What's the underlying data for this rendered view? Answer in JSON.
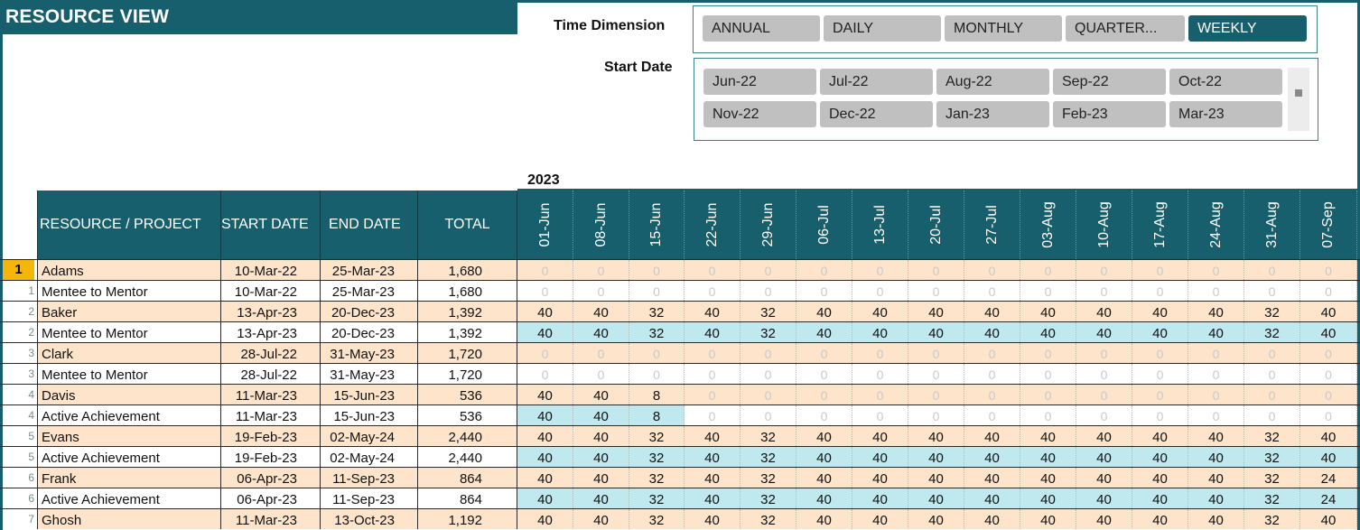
{
  "title": "RESOURCE VIEW",
  "time_dimension": {
    "label": "Time Dimension",
    "options": [
      "ANNUAL",
      "DAILY",
      "MONTHLY",
      "QUARTER...",
      "WEEKLY"
    ],
    "selected": "WEEKLY"
  },
  "start_date": {
    "label": "Start Date",
    "options": [
      "Jun-22",
      "Jul-22",
      "Aug-22",
      "Sep-22",
      "Oct-22",
      "Nov-22",
      "Dec-22",
      "Jan-23",
      "Feb-23",
      "Mar-23"
    ]
  },
  "year": "2023",
  "columns": {
    "resource": "RESOURCE / PROJECT",
    "start": "START DATE",
    "end": "END DATE",
    "total": "TOTAL"
  },
  "weeks": [
    "01-Jun",
    "08-Jun",
    "15-Jun",
    "22-Jun",
    "29-Jun",
    "06-Jul",
    "13-Jul",
    "20-Jul",
    "27-Jul",
    "03-Aug",
    "10-Aug",
    "17-Aug",
    "24-Aug",
    "31-Aug",
    "07-Sep"
  ],
  "rows": [
    {
      "num": "1",
      "type": "res",
      "name": "Adams",
      "start": "10-Mar-22",
      "end": "25-Mar-23",
      "total": "1,680",
      "values": [
        0,
        0,
        0,
        0,
        0,
        0,
        0,
        0,
        0,
        0,
        0,
        0,
        0,
        0,
        0
      ]
    },
    {
      "num": "1",
      "type": "proj",
      "name": "Mentee to Mentor",
      "start": "10-Mar-22",
      "end": "25-Mar-23",
      "total": "1,680",
      "values": [
        0,
        0,
        0,
        0,
        0,
        0,
        0,
        0,
        0,
        0,
        0,
        0,
        0,
        0,
        0
      ]
    },
    {
      "num": "2",
      "type": "res",
      "name": "Baker",
      "start": "13-Apr-23",
      "end": "20-Dec-23",
      "total": "1,392",
      "values": [
        40,
        40,
        32,
        40,
        32,
        40,
        40,
        40,
        40,
        40,
        40,
        40,
        40,
        32,
        40
      ]
    },
    {
      "num": "2",
      "type": "proj",
      "name": "Mentee to Mentor",
      "start": "13-Apr-23",
      "end": "20-Dec-23",
      "total": "1,392",
      "values": [
        40,
        40,
        32,
        40,
        32,
        40,
        40,
        40,
        40,
        40,
        40,
        40,
        40,
        32,
        40
      ]
    },
    {
      "num": "3",
      "type": "res",
      "name": "Clark",
      "start": "28-Jul-22",
      "end": "31-May-23",
      "total": "1,720",
      "values": [
        0,
        0,
        0,
        0,
        0,
        0,
        0,
        0,
        0,
        0,
        0,
        0,
        0,
        0,
        0
      ]
    },
    {
      "num": "3",
      "type": "proj",
      "name": "Mentee to Mentor",
      "start": "28-Jul-22",
      "end": "31-May-23",
      "total": "1,720",
      "values": [
        0,
        0,
        0,
        0,
        0,
        0,
        0,
        0,
        0,
        0,
        0,
        0,
        0,
        0,
        0
      ]
    },
    {
      "num": "4",
      "type": "res",
      "name": "Davis",
      "start": "11-Mar-23",
      "end": "15-Jun-23",
      "total": "536",
      "values": [
        40,
        40,
        8,
        0,
        0,
        0,
        0,
        0,
        0,
        0,
        0,
        0,
        0,
        0,
        0
      ]
    },
    {
      "num": "4",
      "type": "proj",
      "name": "Active Achievement",
      "start": "11-Mar-23",
      "end": "15-Jun-23",
      "total": "536",
      "values": [
        40,
        40,
        8,
        0,
        0,
        0,
        0,
        0,
        0,
        0,
        0,
        0,
        0,
        0,
        0
      ]
    },
    {
      "num": "5",
      "type": "res",
      "name": "Evans",
      "start": "19-Feb-23",
      "end": "02-May-24",
      "total": "2,440",
      "values": [
        40,
        40,
        32,
        40,
        32,
        40,
        40,
        40,
        40,
        40,
        40,
        40,
        40,
        32,
        40
      ]
    },
    {
      "num": "5",
      "type": "proj",
      "name": "Active Achievement",
      "start": "19-Feb-23",
      "end": "02-May-24",
      "total": "2,440",
      "values": [
        40,
        40,
        32,
        40,
        32,
        40,
        40,
        40,
        40,
        40,
        40,
        40,
        40,
        32,
        40
      ]
    },
    {
      "num": "6",
      "type": "res",
      "name": "Frank",
      "start": "06-Apr-23",
      "end": "11-Sep-23",
      "total": "864",
      "values": [
        40,
        40,
        32,
        40,
        32,
        40,
        40,
        40,
        40,
        40,
        40,
        40,
        40,
        32,
        24
      ]
    },
    {
      "num": "6",
      "type": "proj",
      "name": "Active Achievement",
      "start": "06-Apr-23",
      "end": "11-Sep-23",
      "total": "864",
      "values": [
        40,
        40,
        32,
        40,
        32,
        40,
        40,
        40,
        40,
        40,
        40,
        40,
        40,
        32,
        24
      ]
    },
    {
      "num": "7",
      "type": "res",
      "name": "Ghosh",
      "start": "11-Mar-23",
      "end": "13-Oct-23",
      "total": "1,192",
      "values": [
        40,
        40,
        32,
        40,
        32,
        40,
        40,
        40,
        40,
        40,
        40,
        40,
        40,
        32,
        40
      ]
    }
  ]
}
